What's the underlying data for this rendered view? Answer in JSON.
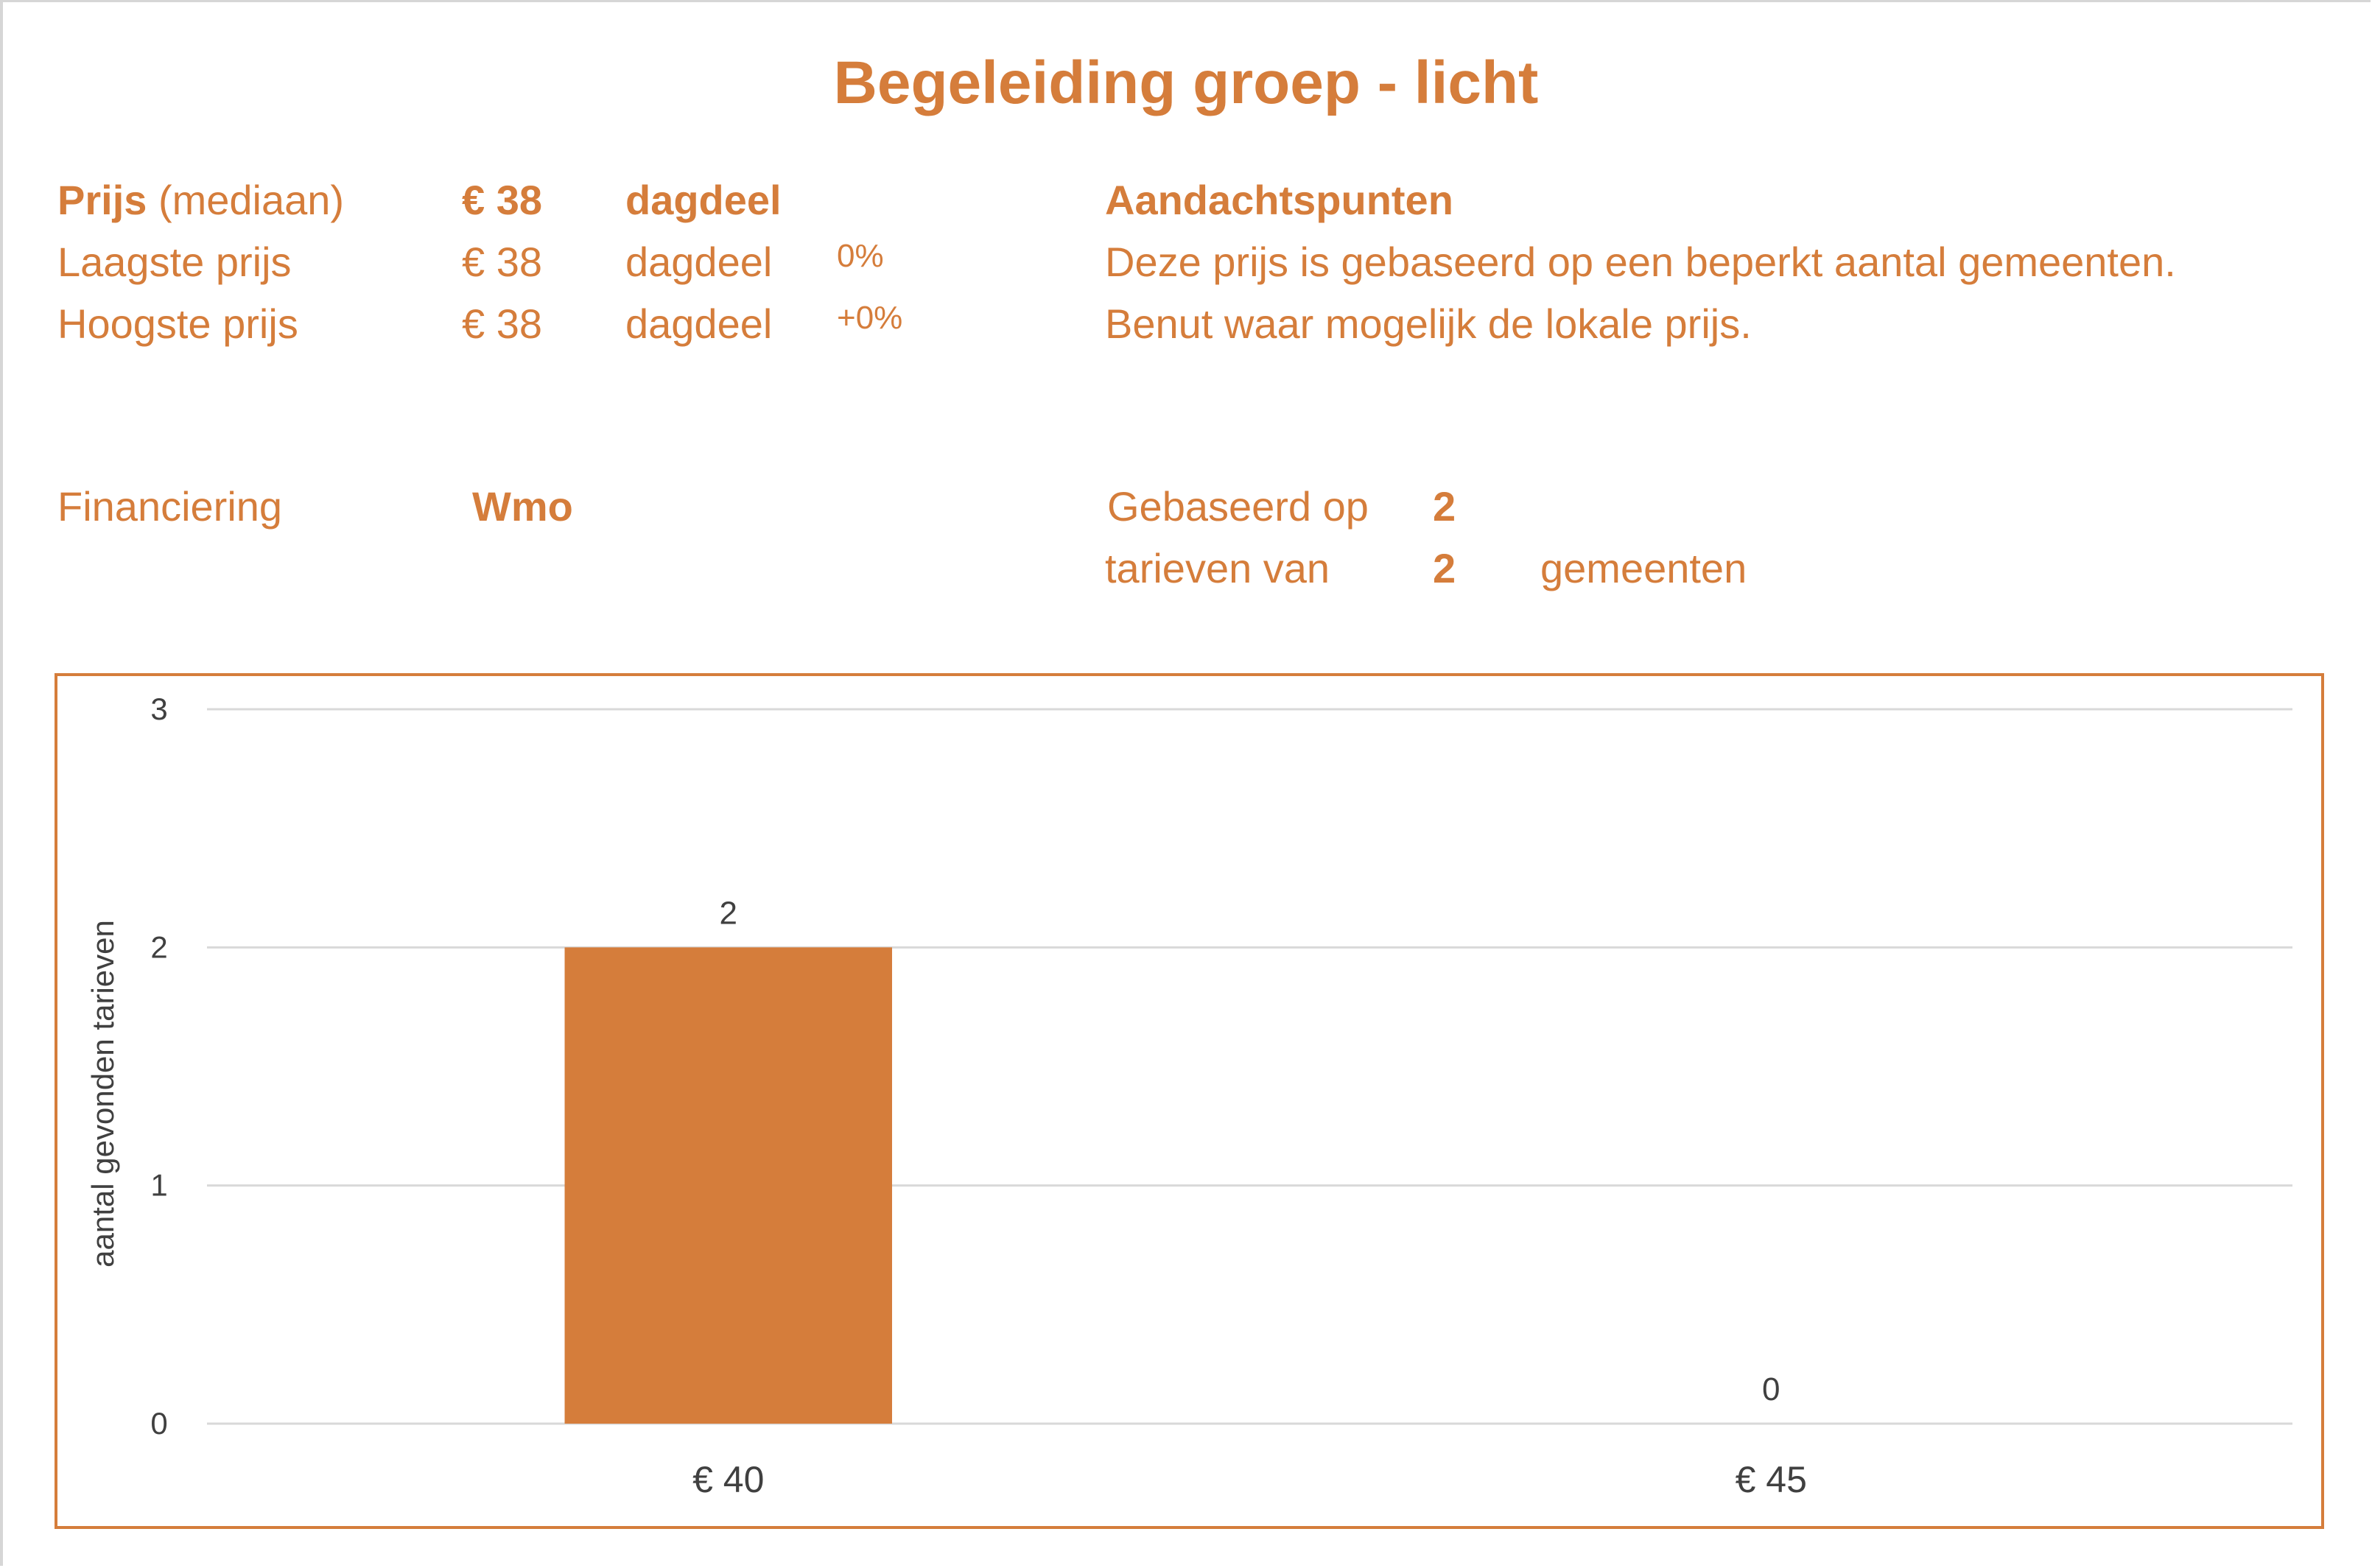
{
  "title": "Begeleiding groep - licht",
  "price": {
    "median_label": "Prijs",
    "median_sub": "(mediaan)",
    "median_value": "€ 38",
    "median_unit": "dagdeel",
    "low_label": "Laagste prijs",
    "low_value": "€ 38",
    "low_unit": "dagdeel",
    "low_pct": "0%",
    "high_label": "Hoogste prijs",
    "high_value": "€ 38",
    "high_unit": "dagdeel",
    "high_pct": "+0%"
  },
  "notes": {
    "heading": "Aandachtspunten",
    "line1": "Deze prijs is gebaseerd op een beperkt aantal gemeenten.",
    "line2": "Benut waar mogelijk de lokale prijs."
  },
  "financing": {
    "label": "Financiering",
    "value": "Wmo"
  },
  "basis": {
    "label1": "Gebaseerd op",
    "count1": "2",
    "label2": "tarieven van",
    "count2": "2",
    "label3": "gemeenten"
  },
  "colors": {
    "accent": "#D57D3B",
    "grid": "#d9d9d9",
    "text": "#404040"
  },
  "chart_data": {
    "type": "bar",
    "categories": [
      "€ 40",
      "€ 45"
    ],
    "values": [
      2,
      0
    ],
    "data_labels": [
      "2",
      "0"
    ],
    "title": "",
    "xlabel": "",
    "ylabel": "aantal gevonden tarieven",
    "ylim": [
      0,
      3
    ],
    "yticks": [
      "0",
      "1",
      "2",
      "3"
    ],
    "grid": true,
    "legend": "none"
  }
}
